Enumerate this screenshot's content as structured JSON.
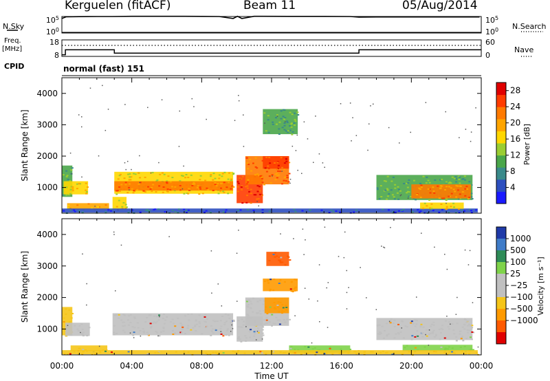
{
  "header": {
    "station": "Kerguelen (fitACF)",
    "beam": "Beam 11",
    "date": "05/Aug/2014"
  },
  "side_labels": {
    "nsky": "N.Sky",
    "nsearch": "N.Search",
    "freq": "Freq.",
    "freq_unit": "[MHz]",
    "nave": "Nave",
    "cpid": "CPID",
    "cpid_value": "normal (fast) 151"
  },
  "colors": {
    "line": "#000000",
    "power_scale": [
      "#1a1aff",
      "#2d4fbf",
      "#3a8a8a",
      "#4aa64a",
      "#9acd32",
      "#ffd700",
      "#ffa500",
      "#ff7a00",
      "#ff3c00",
      "#e00000"
    ],
    "velocity_scale": [
      "#1f3aa8",
      "#3f7cc8",
      "#2e8b57",
      "#7fd34a",
      "#c0c0c0",
      "#c0c0c0",
      "#f5c518",
      "#ff9a00",
      "#ff5a00",
      "#e00000"
    ]
  },
  "chart_data": [
    {
      "type": "line",
      "panel": "noise",
      "x": [
        0,
        0.25,
        1.0,
        2.0,
        2.9,
        4.0,
        6.0,
        7.0,
        8.0,
        9.0,
        9.8,
        10.05,
        10.3,
        11.0,
        13.0,
        15.0,
        16.5,
        17.0,
        18.0,
        20.0,
        22.0,
        23.6,
        23.9
      ],
      "y_nsky": [
        100000.0,
        400000.0,
        450000.0,
        500000.0,
        500000.0,
        600000.0,
        600000.0,
        600000.0,
        550000.0,
        500000.0,
        100000.0,
        600000.0,
        100000.0,
        600000.0,
        550000.0,
        550000.0,
        500000.0,
        300000.0,
        350000.0,
        350000.0,
        350000.0,
        350000.0,
        350000.0
      ],
      "ytick_labels_left": [
        "10^5",
        "10^0"
      ],
      "ytick_labels_right": [
        "10^5",
        "10^0"
      ]
    },
    {
      "type": "line",
      "panel": "frequency",
      "x": [
        0,
        0.2,
        2.8,
        3.0,
        6.0,
        10.0,
        14.0,
        16.8,
        17.0,
        20.0,
        24.0
      ],
      "freq_mhz": [
        9,
        12,
        12,
        10,
        10,
        10,
        10,
        10,
        12,
        12,
        12
      ],
      "nave": [
        40,
        40,
        40,
        40,
        40,
        40,
        40,
        40,
        40,
        40,
        40
      ],
      "ytick_labels_left": [
        "18",
        "8"
      ],
      "ytick_labels_right": [
        "60",
        "0"
      ]
    },
    {
      "type": "heatmap",
      "panel": "power",
      "xlabel": "",
      "ylabel": "Slant Range [km]",
      "xlim": [
        0,
        24
      ],
      "ylim": [
        180,
        4500
      ],
      "yticks": [
        1000,
        2000,
        3000,
        4000
      ],
      "colorbar_label": "Power [dB]",
      "colorbar_ticks": [
        "4",
        "8",
        "12",
        "16",
        "20",
        "24",
        "28"
      ],
      "clim": [
        0,
        30
      ],
      "blobs": [
        {
          "x0": 0.0,
          "x1": 0.6,
          "r0": 700,
          "r1": 1700,
          "v": 9
        },
        {
          "x0": 0.1,
          "x1": 1.5,
          "r0": 780,
          "r1": 1200,
          "v": 18
        },
        {
          "x0": 0.3,
          "x1": 2.7,
          "r0": 300,
          "r1": 500,
          "v": 21
        },
        {
          "x0": 2.9,
          "x1": 3.7,
          "r0": 300,
          "r1": 700,
          "v": 17
        },
        {
          "x0": 3.0,
          "x1": 9.8,
          "r0": 800,
          "r1": 1500,
          "v": 17
        },
        {
          "x0": 3.0,
          "x1": 9.8,
          "r0": 900,
          "r1": 1200,
          "v": 23
        },
        {
          "x0": 10.0,
          "x1": 11.5,
          "r0": 500,
          "r1": 1400,
          "v": 26
        },
        {
          "x0": 10.5,
          "x1": 13.0,
          "r0": 1100,
          "r1": 2000,
          "v": 23
        },
        {
          "x0": 11.5,
          "x1": 13.0,
          "r0": 1600,
          "r1": 2000,
          "v": 26
        },
        {
          "x0": 11.5,
          "x1": 13.5,
          "r0": 2700,
          "r1": 3500,
          "v": 10
        },
        {
          "x0": 0.0,
          "x1": 23.8,
          "r0": 200,
          "r1": 330,
          "v": 4
        },
        {
          "x0": 18.0,
          "x1": 23.5,
          "r0": 600,
          "r1": 1400,
          "v": 10
        },
        {
          "x0": 20.0,
          "x1": 23.4,
          "r0": 650,
          "r1": 1100,
          "v": 24
        },
        {
          "x0": 20.5,
          "x1": 23.0,
          "r0": 320,
          "r1": 520,
          "v": 15
        }
      ]
    },
    {
      "type": "heatmap",
      "panel": "velocity",
      "xlabel": "Time UT",
      "ylabel": "Slant Range [km]",
      "xlim": [
        0,
        24
      ],
      "ylim": [
        180,
        4500
      ],
      "x_ticklabels": [
        "00:00",
        "04:00",
        "08:00",
        "12:00",
        "16:00",
        "20:00",
        "00:00"
      ],
      "yticks": [
        1000,
        2000,
        3000,
        4000
      ],
      "colorbar_label": "Velocity [m s⁻¹]",
      "colorbar_ticks": [
        "1000",
        "500",
        "100",
        "25",
        "−25",
        "−100",
        "−500",
        "−1000"
      ],
      "blobs": [
        {
          "x0": 0.0,
          "x1": 0.6,
          "r0": 800,
          "r1": 1700,
          "c": "#f5c518"
        },
        {
          "x0": 0.2,
          "x1": 1.6,
          "r0": 780,
          "r1": 1200,
          "c": "#c0c0c0"
        },
        {
          "x0": 0.5,
          "x1": 2.6,
          "r0": 300,
          "r1": 480,
          "c": "#f5c518"
        },
        {
          "x0": 2.9,
          "x1": 9.8,
          "r0": 800,
          "r1": 1500,
          "c": "#c0c0c0"
        },
        {
          "x0": 10.0,
          "x1": 11.5,
          "r0": 600,
          "r1": 1400,
          "c": "#c0c0c0"
        },
        {
          "x0": 10.5,
          "x1": 13.0,
          "r0": 1100,
          "r1": 2000,
          "c": "#c0c0c0"
        },
        {
          "x0": 11.6,
          "x1": 13.0,
          "r0": 1500,
          "r1": 2000,
          "c": "#ff9a00"
        },
        {
          "x0": 11.5,
          "x1": 13.5,
          "r0": 2200,
          "r1": 2600,
          "c": "#ff9a00"
        },
        {
          "x0": 11.7,
          "x1": 13.0,
          "r0": 3000,
          "r1": 3450,
          "c": "#ff5a00"
        },
        {
          "x0": 13.0,
          "x1": 16.5,
          "r0": 250,
          "r1": 480,
          "c": "#7fd34a"
        },
        {
          "x0": 18.0,
          "x1": 23.5,
          "r0": 650,
          "r1": 1350,
          "c": "#c0c0c0"
        },
        {
          "x0": 19.5,
          "x1": 23.5,
          "r0": 300,
          "r1": 500,
          "c": "#7fd34a"
        },
        {
          "x0": 0.0,
          "x1": 23.8,
          "r0": 200,
          "r1": 330,
          "c": "#f5c518"
        }
      ]
    }
  ]
}
